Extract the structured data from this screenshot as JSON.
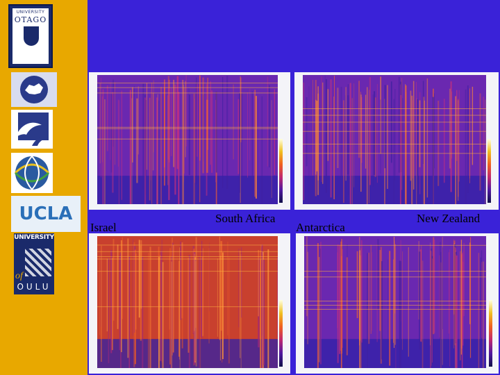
{
  "sidebar": {
    "logos": [
      {
        "name": "university-of-otago-logo",
        "lines": [
          "UNIVERSITY",
          "OTAGO"
        ]
      },
      {
        "name": "antarctic-logo"
      },
      {
        "name": "dolphin-logo"
      },
      {
        "name": "globe-logo"
      },
      {
        "name": "ucla-logo",
        "text": "UCLA"
      },
      {
        "name": "university-of-oulu-logo",
        "lines": [
          "UNIVERSITY",
          "of",
          "OULU"
        ]
      }
    ]
  },
  "labels": {
    "israel": "Israel",
    "south_africa": "South Africa",
    "antarctica": "Antarctica",
    "new_zealand": "New Zealand"
  },
  "colors": {
    "background": "#3a22d8",
    "sidebar": "#e8a800"
  }
}
